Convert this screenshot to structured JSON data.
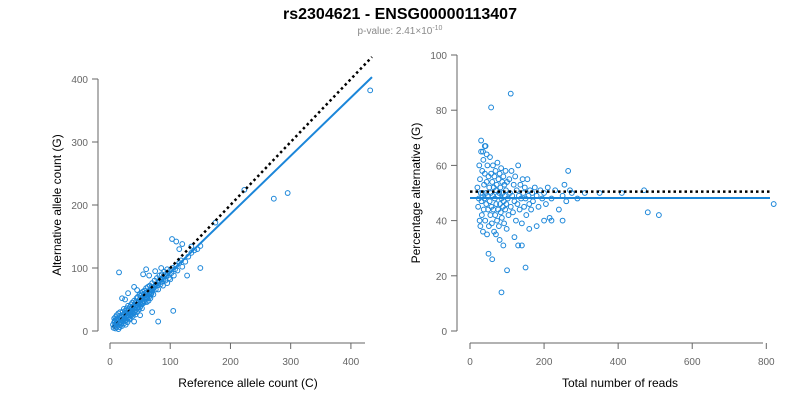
{
  "title": "rs2304621 - ENSG00000113407",
  "subtitle": {
    "prefix": "p-value: 2.41×10",
    "exponent": "-10"
  },
  "colors": {
    "points": "#1b86d9",
    "fit": "#1b86d9",
    "reference": "#000000",
    "axis": "#666666"
  },
  "chart_data": [
    {
      "type": "scatter",
      "xlabel": "Reference allele count (C)",
      "ylabel": "Alternative allele count (G)",
      "xlim": [
        0,
        440
      ],
      "ylim": [
        0,
        400
      ],
      "xticks": [
        0,
        100,
        200,
        300,
        400
      ],
      "yticks": [
        0,
        100,
        200,
        300,
        400
      ],
      "grid": false,
      "fit_line": {
        "x": [
          5,
          435
        ],
        "y": [
          5,
          403
        ],
        "style": "solid"
      },
      "reference_line": {
        "x": [
          5,
          435
        ],
        "y": [
          5,
          435
        ],
        "style": "dotted"
      },
      "points": [
        [
          5,
          10
        ],
        [
          6,
          5
        ],
        [
          7,
          14
        ],
        [
          7,
          20
        ],
        [
          8,
          8
        ],
        [
          8,
          16
        ],
        [
          9,
          22
        ],
        [
          9,
          4
        ],
        [
          10,
          12
        ],
        [
          10,
          18
        ],
        [
          11,
          6
        ],
        [
          11,
          25
        ],
        [
          12,
          10
        ],
        [
          12,
          15
        ],
        [
          13,
          20
        ],
        [
          13,
          8
        ],
        [
          14,
          28
        ],
        [
          14,
          3
        ],
        [
          15,
          12
        ],
        [
          15,
          18
        ],
        [
          16,
          24
        ],
        [
          16,
          6
        ],
        [
          17,
          15
        ],
        [
          17,
          30
        ],
        [
          18,
          10
        ],
        [
          18,
          20
        ],
        [
          19,
          25
        ],
        [
          19,
          12
        ],
        [
          20,
          22
        ],
        [
          20,
          8
        ],
        [
          21,
          30
        ],
        [
          21,
          15
        ],
        [
          22,
          18
        ],
        [
          22,
          26
        ],
        [
          23,
          12
        ],
        [
          23,
          35
        ],
        [
          24,
          20
        ],
        [
          24,
          28
        ],
        [
          25,
          16
        ],
        [
          25,
          32
        ],
        [
          26,
          22
        ],
        [
          26,
          10
        ],
        [
          27,
          30
        ],
        [
          27,
          18
        ],
        [
          28,
          24
        ],
        [
          28,
          36
        ],
        [
          29,
          20
        ],
        [
          29,
          14
        ],
        [
          30,
          28
        ],
        [
          30,
          40
        ],
        [
          31,
          22
        ],
        [
          31,
          33
        ],
        [
          32,
          18
        ],
        [
          32,
          27
        ],
        [
          33,
          38
        ],
        [
          33,
          25
        ],
        [
          34,
          30
        ],
        [
          34,
          20
        ],
        [
          35,
          42
        ],
        [
          35,
          32
        ],
        [
          36,
          26
        ],
        [
          36,
          36
        ],
        [
          37,
          30
        ],
        [
          37,
          45
        ],
        [
          38,
          24
        ],
        [
          38,
          34
        ],
        [
          39,
          40
        ],
        [
          39,
          28
        ],
        [
          40,
          36
        ],
        [
          40,
          48
        ],
        [
          41,
          30
        ],
        [
          41,
          42
        ],
        [
          42,
          26
        ],
        [
          42,
          38
        ],
        [
          43,
          46
        ],
        [
          43,
          34
        ],
        [
          44,
          40
        ],
        [
          44,
          52
        ],
        [
          45,
          36
        ],
        [
          45,
          30
        ],
        [
          46,
          44
        ],
        [
          46,
          54
        ],
        [
          47,
          38
        ],
        [
          47,
          46
        ],
        [
          48,
          42
        ],
        [
          48,
          34
        ],
        [
          49,
          50
        ],
        [
          49,
          58
        ],
        [
          50,
          44
        ],
        [
          50,
          38
        ],
        [
          51,
          48
        ],
        [
          51,
          56
        ],
        [
          52,
          42
        ],
        [
          52,
          60
        ],
        [
          53,
          50
        ],
        [
          53,
          36
        ],
        [
          54,
          46
        ],
        [
          54,
          62
        ],
        [
          55,
          54
        ],
        [
          55,
          44
        ],
        [
          56,
          58
        ],
        [
          56,
          48
        ],
        [
          57,
          52
        ],
        [
          57,
          64
        ],
        [
          58,
          46
        ],
        [
          58,
          56
        ],
        [
          59,
          60
        ],
        [
          59,
          50
        ],
        [
          60,
          54
        ],
        [
          60,
          68
        ],
        [
          61,
          58
        ],
        [
          61,
          46
        ],
        [
          62,
          62
        ],
        [
          62,
          52
        ],
        [
          63,
          56
        ],
        [
          63,
          70
        ],
        [
          64,
          60
        ],
        [
          64,
          48
        ],
        [
          65,
          64
        ],
        [
          65,
          54
        ],
        [
          66,
          58
        ],
        [
          66,
          72
        ],
        [
          67,
          62
        ],
        [
          67,
          52
        ],
        [
          68,
          66
        ],
        [
          68,
          58
        ],
        [
          69,
          70
        ],
        [
          69,
          60
        ],
        [
          70,
          64
        ],
        [
          70,
          76
        ],
        [
          72,
          68
        ],
        [
          72,
          58
        ],
        [
          74,
          70
        ],
        [
          74,
          80
        ],
        [
          76,
          66
        ],
        [
          76,
          74
        ],
        [
          78,
          72
        ],
        [
          78,
          84
        ],
        [
          80,
          76
        ],
        [
          80,
          66
        ],
        [
          82,
          80
        ],
        [
          82,
          88
        ],
        [
          84,
          74
        ],
        [
          84,
          82
        ],
        [
          86,
          78
        ],
        [
          86,
          90
        ],
        [
          88,
          82
        ],
        [
          88,
          72
        ],
        [
          90,
          86
        ],
        [
          90,
          94
        ],
        [
          92,
          80
        ],
        [
          92,
          90
        ],
        [
          94,
          88
        ],
        [
          95,
          76
        ],
        [
          96,
          92
        ],
        [
          98,
          84
        ],
        [
          100,
          96
        ],
        [
          100,
          82
        ],
        [
          102,
          92
        ],
        [
          104,
          100
        ],
        [
          106,
          88
        ],
        [
          108,
          98
        ],
        [
          110,
          104
        ],
        [
          112,
          96
        ],
        [
          115,
          108
        ],
        [
          118,
          112
        ],
        [
          120,
          102
        ],
        [
          125,
          110
        ],
        [
          130,
          118
        ],
        [
          135,
          124
        ],
        [
          140,
          128
        ],
        [
          145,
          130
        ],
        [
          150,
          135
        ],
        [
          15,
          93
        ],
        [
          20,
          52
        ],
        [
          25,
          50
        ],
        [
          30,
          60
        ],
        [
          40,
          70
        ],
        [
          45,
          65
        ],
        [
          55,
          90
        ],
        [
          60,
          98
        ],
        [
          65,
          88
        ],
        [
          75,
          95
        ],
        [
          85,
          100
        ],
        [
          95,
          98
        ],
        [
          103,
          146
        ],
        [
          110,
          142
        ],
        [
          115,
          130
        ],
        [
          120,
          138
        ],
        [
          128,
          88
        ],
        [
          135,
          134
        ],
        [
          150,
          100
        ],
        [
          175,
          172
        ],
        [
          105,
          32
        ],
        [
          80,
          15
        ],
        [
          50,
          25
        ],
        [
          40,
          15
        ],
        [
          70,
          30
        ],
        [
          223,
          224
        ],
        [
          272,
          210
        ],
        [
          295,
          219
        ],
        [
          432,
          382
        ]
      ]
    },
    {
      "type": "scatter",
      "xlabel": "Total number of reads",
      "ylabel": "Percentage alternative (G)",
      "xlim": [
        0,
        810
      ],
      "ylim": [
        0,
        100
      ],
      "xticks": [
        0,
        200,
        400,
        600,
        800
      ],
      "yticks": [
        0,
        20,
        40,
        60,
        80,
        100
      ],
      "grid": false,
      "fit_line": {
        "x": [
          0,
          810
        ],
        "y": [
          48.2,
          48.2
        ],
        "style": "solid"
      },
      "reference_line": {
        "x": [
          0,
          810
        ],
        "y": [
          50.5,
          50.5
        ],
        "style": "dotted"
      },
      "points": [
        [
          20,
          52
        ],
        [
          22,
          45
        ],
        [
          24,
          48
        ],
        [
          25,
          60
        ],
        [
          26,
          40
        ],
        [
          27,
          55
        ],
        [
          28,
          38
        ],
        [
          29,
          50
        ],
        [
          30,
          65
        ],
        [
          31,
          47
        ],
        [
          32,
          42
        ],
        [
          33,
          58
        ],
        [
          34,
          50
        ],
        [
          35,
          36
        ],
        [
          36,
          62
        ],
        [
          37,
          44
        ],
        [
          38,
          53
        ],
        [
          39,
          48
        ],
        [
          40,
          57
        ],
        [
          41,
          40
        ],
        [
          42,
          67
        ],
        [
          43,
          50
        ],
        [
          44,
          46
        ],
        [
          45,
          54
        ],
        [
          46,
          35
        ],
        [
          47,
          60
        ],
        [
          48,
          49
        ],
        [
          49,
          44
        ],
        [
          50,
          56
        ],
        [
          51,
          38
        ],
        [
          52,
          52
        ],
        [
          53,
          47
        ],
        [
          54,
          63
        ],
        [
          55,
          42
        ],
        [
          56,
          50
        ],
        [
          57,
          57
        ],
        [
          58,
          45
        ],
        [
          59,
          39
        ],
        [
          60,
          54
        ],
        [
          61,
          49
        ],
        [
          62,
          60
        ],
        [
          63,
          44
        ],
        [
          64,
          52
        ],
        [
          65,
          36
        ],
        [
          66,
          56
        ],
        [
          67,
          48
        ],
        [
          68,
          42
        ],
        [
          69,
          58
        ],
        [
          70,
          51
        ],
        [
          71,
          46
        ],
        [
          72,
          53
        ],
        [
          73,
          40
        ],
        [
          74,
          61
        ],
        [
          75,
          49
        ],
        [
          76,
          44
        ],
        [
          77,
          55
        ],
        [
          78,
          38
        ],
        [
          79,
          50
        ],
        [
          80,
          57
        ],
        [
          81,
          46
        ],
        [
          82,
          52
        ],
        [
          83,
          43
        ],
        [
          84,
          59
        ],
        [
          85,
          48
        ],
        [
          86,
          41
        ],
        [
          87,
          54
        ],
        [
          88,
          50
        ],
        [
          89,
          45
        ],
        [
          90,
          56
        ],
        [
          91,
          47
        ],
        [
          92,
          39
        ],
        [
          93,
          53
        ],
        [
          94,
          49
        ],
        [
          95,
          44
        ],
        [
          96,
          58
        ],
        [
          97,
          51
        ],
        [
          98,
          46
        ],
        [
          99,
          37
        ],
        [
          100,
          54
        ],
        [
          102,
          48
        ],
        [
          104,
          42
        ],
        [
          106,
          55
        ],
        [
          108,
          50
        ],
        [
          110,
          45
        ],
        [
          112,
          58
        ],
        [
          114,
          49
        ],
        [
          116,
          43
        ],
        [
          118,
          53
        ],
        [
          120,
          47
        ],
        [
          122,
          56
        ],
        [
          124,
          40
        ],
        [
          126,
          51
        ],
        [
          128,
          46
        ],
        [
          130,
          60
        ],
        [
          132,
          49
        ],
        [
          134,
          44
        ],
        [
          136,
          53
        ],
        [
          138,
          48
        ],
        [
          140,
          39
        ],
        [
          142,
          55
        ],
        [
          144,
          50
        ],
        [
          146,
          45
        ],
        [
          148,
          52
        ],
        [
          150,
          48
        ],
        [
          152,
          42
        ],
        [
          155,
          55
        ],
        [
          158,
          49
        ],
        [
          160,
          46
        ],
        [
          162,
          51
        ],
        [
          165,
          44
        ],
        [
          168,
          50
        ],
        [
          170,
          47
        ],
        [
          175,
          52
        ],
        [
          180,
          49
        ],
        [
          185,
          45
        ],
        [
          190,
          51
        ],
        [
          195,
          48
        ],
        [
          200,
          50
        ],
        [
          205,
          46
        ],
        [
          210,
          52
        ],
        [
          215,
          41
        ],
        [
          220,
          48
        ],
        [
          230,
          51
        ],
        [
          240,
          44
        ],
        [
          250,
          49
        ],
        [
          255,
          53
        ],
        [
          260,
          47
        ],
        [
          265,
          58
        ],
        [
          270,
          51
        ],
        [
          275,
          50
        ],
        [
          290,
          48
        ],
        [
          57,
          81
        ],
        [
          110,
          86
        ],
        [
          30,
          69
        ],
        [
          35,
          65
        ],
        [
          40,
          67
        ],
        [
          45,
          64
        ],
        [
          50,
          28
        ],
        [
          60,
          26
        ],
        [
          80,
          33
        ],
        [
          90,
          31
        ],
        [
          100,
          22
        ],
        [
          85,
          14
        ],
        [
          150,
          23
        ],
        [
          130,
          31
        ],
        [
          70,
          35
        ],
        [
          120,
          34
        ],
        [
          140,
          31
        ],
        [
          160,
          37
        ],
        [
          180,
          38
        ],
        [
          200,
          40
        ],
        [
          220,
          40
        ],
        [
          250,
          40
        ],
        [
          310,
          50
        ],
        [
          350,
          50
        ],
        [
          410,
          50
        ],
        [
          470,
          51
        ],
        [
          480,
          43
        ],
        [
          510,
          42
        ],
        [
          820,
          46
        ]
      ]
    }
  ]
}
